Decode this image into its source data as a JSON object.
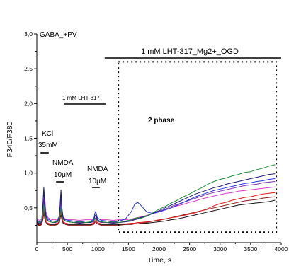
{
  "chart_data": {
    "type": "line",
    "xlabel": "Time, s",
    "ylabel": "F340/F380",
    "xlim": [
      0,
      4000
    ],
    "ylim": [
      0,
      3.0
    ],
    "xticks": [
      0,
      500,
      1000,
      1500,
      2000,
      2500,
      3000,
      3500,
      4000
    ],
    "xtick_labels": [
      "0",
      "500",
      "1000",
      "1500",
      "2000",
      "2500",
      "3000",
      "3500",
      "4000"
    ],
    "yticks": [
      0.5,
      1.0,
      1.5,
      2.0,
      2.5,
      3.0
    ],
    "ytick_labels": [
      "0,5",
      "1,0",
      "1,5",
      "2,0",
      "2,5",
      "3,0"
    ],
    "grid": false,
    "legend": "none",
    "x": [
      0,
      20,
      50,
      80,
      100,
      115,
      130,
      150,
      180,
      220,
      260,
      300,
      340,
      370,
      385,
      395,
      410,
      430,
      470,
      520,
      600,
      700,
      800,
      880,
      930,
      950,
      965,
      990,
      1050,
      1150,
      1250,
      1350,
      1450,
      1550,
      1600,
      1650,
      1700,
      1800,
      1900,
      2000,
      2100,
      2200,
      2300,
      2400,
      2500,
      2600,
      2700,
      2800,
      2900,
      3000,
      3100,
      3200,
      3300,
      3400,
      3500,
      3600,
      3700,
      3800,
      3900
    ],
    "series": [
      {
        "color": "#111111",
        "values": [
          0.28,
          0.26,
          0.25,
          0.27,
          0.33,
          0.42,
          0.35,
          0.29,
          0.27,
          0.26,
          0.26,
          0.26,
          0.26,
          0.29,
          0.36,
          0.4,
          0.33,
          0.28,
          0.27,
          0.26,
          0.26,
          0.26,
          0.26,
          0.26,
          0.27,
          0.29,
          0.3,
          0.27,
          0.26,
          0.26,
          0.26,
          0.26,
          0.26,
          0.27,
          0.27,
          0.27,
          0.28,
          0.28,
          0.29,
          0.3,
          0.31,
          0.33,
          0.34,
          0.36,
          0.38,
          0.4,
          0.42,
          0.44,
          0.46,
          0.48,
          0.5,
          0.52,
          0.54,
          0.55,
          0.56,
          0.57,
          0.58,
          0.59,
          0.61
        ]
      },
      {
        "color": "#8b1c1c",
        "values": [
          0.27,
          0.25,
          0.24,
          0.26,
          0.34,
          0.45,
          0.36,
          0.29,
          0.26,
          0.25,
          0.25,
          0.25,
          0.26,
          0.3,
          0.42,
          0.5,
          0.37,
          0.29,
          0.26,
          0.25,
          0.25,
          0.25,
          0.25,
          0.25,
          0.26,
          0.29,
          0.3,
          0.27,
          0.25,
          0.25,
          0.25,
          0.25,
          0.26,
          0.26,
          0.27,
          0.27,
          0.28,
          0.29,
          0.31,
          0.32,
          0.34,
          0.36,
          0.38,
          0.4,
          0.42,
          0.44,
          0.46,
          0.48,
          0.5,
          0.52,
          0.54,
          0.56,
          0.58,
          0.6,
          0.61,
          0.62,
          0.64,
          0.65,
          0.66
        ]
      },
      {
        "color": "#e31a1a",
        "values": [
          0.29,
          0.27,
          0.26,
          0.28,
          0.38,
          0.5,
          0.4,
          0.32,
          0.28,
          0.27,
          0.27,
          0.27,
          0.28,
          0.31,
          0.4,
          0.45,
          0.36,
          0.3,
          0.28,
          0.27,
          0.27,
          0.27,
          0.27,
          0.27,
          0.28,
          0.31,
          0.32,
          0.29,
          0.27,
          0.27,
          0.27,
          0.27,
          0.27,
          0.28,
          0.28,
          0.29,
          0.29,
          0.3,
          0.31,
          0.33,
          0.34,
          0.36,
          0.37,
          0.39,
          0.41,
          0.43,
          0.46,
          0.49,
          0.53,
          0.56,
          0.58,
          0.61,
          0.63,
          0.65,
          0.66,
          0.68,
          0.7,
          0.71,
          0.72
        ]
      },
      {
        "color": "#d63fc8",
        "values": [
          0.35,
          0.33,
          0.32,
          0.34,
          0.48,
          0.62,
          0.65,
          0.44,
          0.36,
          0.34,
          0.33,
          0.33,
          0.34,
          0.38,
          0.5,
          0.58,
          0.45,
          0.37,
          0.34,
          0.33,
          0.33,
          0.32,
          0.33,
          0.33,
          0.34,
          0.38,
          0.4,
          0.35,
          0.33,
          0.33,
          0.32,
          0.33,
          0.33,
          0.34,
          0.35,
          0.36,
          0.37,
          0.39,
          0.42,
          0.44,
          0.47,
          0.5,
          0.53,
          0.55,
          0.58,
          0.6,
          0.63,
          0.65,
          0.67,
          0.69,
          0.71,
          0.72,
          0.74,
          0.75,
          0.76,
          0.77,
          0.78,
          0.79,
          0.8
        ]
      },
      {
        "color": "#7a2ea6",
        "values": [
          0.31,
          0.29,
          0.28,
          0.3,
          0.45,
          0.6,
          0.45,
          0.35,
          0.31,
          0.3,
          0.29,
          0.29,
          0.3,
          0.35,
          0.52,
          0.62,
          0.44,
          0.34,
          0.31,
          0.3,
          0.29,
          0.29,
          0.29,
          0.29,
          0.3,
          0.34,
          0.36,
          0.31,
          0.29,
          0.29,
          0.29,
          0.29,
          0.3,
          0.32,
          0.34,
          0.35,
          0.36,
          0.39,
          0.42,
          0.45,
          0.48,
          0.52,
          0.55,
          0.58,
          0.61,
          0.64,
          0.67,
          0.7,
          0.72,
          0.74,
          0.76,
          0.78,
          0.8,
          0.82,
          0.83,
          0.84,
          0.86,
          0.87,
          0.88
        ]
      },
      {
        "color": "#2233dd",
        "values": [
          0.33,
          0.31,
          0.3,
          0.32,
          0.55,
          0.8,
          0.55,
          0.4,
          0.34,
          0.32,
          0.31,
          0.31,
          0.32,
          0.38,
          0.58,
          0.72,
          0.48,
          0.36,
          0.33,
          0.32,
          0.31,
          0.3,
          0.31,
          0.31,
          0.33,
          0.42,
          0.45,
          0.36,
          0.32,
          0.31,
          0.3,
          0.31,
          0.34,
          0.45,
          0.55,
          0.58,
          0.54,
          0.44,
          0.42,
          0.44,
          0.47,
          0.5,
          0.54,
          0.58,
          0.62,
          0.66,
          0.69,
          0.72,
          0.75,
          0.77,
          0.79,
          0.81,
          0.83,
          0.85,
          0.86,
          0.88,
          0.89,
          0.91,
          0.92
        ]
      },
      {
        "color": "#1b1b78",
        "values": [
          0.3,
          0.28,
          0.27,
          0.29,
          0.5,
          0.78,
          0.52,
          0.38,
          0.32,
          0.3,
          0.29,
          0.29,
          0.3,
          0.36,
          0.6,
          0.76,
          0.5,
          0.36,
          0.31,
          0.3,
          0.29,
          0.28,
          0.29,
          0.29,
          0.31,
          0.38,
          0.4,
          0.33,
          0.3,
          0.29,
          0.28,
          0.29,
          0.3,
          0.31,
          0.33,
          0.34,
          0.36,
          0.38,
          0.42,
          0.46,
          0.5,
          0.54,
          0.58,
          0.62,
          0.66,
          0.7,
          0.73,
          0.76,
          0.79,
          0.81,
          0.84,
          0.86,
          0.88,
          0.9,
          0.92,
          0.94,
          0.96,
          0.98,
          0.99
        ]
      },
      {
        "color": "#1e8c3c",
        "values": [
          0.32,
          0.3,
          0.29,
          0.31,
          0.42,
          0.55,
          0.4,
          0.34,
          0.31,
          0.3,
          0.29,
          0.3,
          0.3,
          0.34,
          0.45,
          0.5,
          0.38,
          0.33,
          0.31,
          0.3,
          0.29,
          0.3,
          0.29,
          0.3,
          0.31,
          0.35,
          0.33,
          0.31,
          0.3,
          0.29,
          0.3,
          0.29,
          0.31,
          0.33,
          0.35,
          0.36,
          0.35,
          0.38,
          0.43,
          0.48,
          0.52,
          0.57,
          0.61,
          0.66,
          0.7,
          0.75,
          0.79,
          0.84,
          0.88,
          0.91,
          0.93,
          0.96,
          0.98,
          1.01,
          1.02,
          1.05,
          1.07,
          1.1,
          1.12
        ]
      }
    ],
    "annotations": {
      "condition": "GABA_+PV",
      "ogd": {
        "label": "1 mM LHT-317_Mg2+_OGD",
        "t": [
          1110,
          4000
        ]
      },
      "lht": {
        "label": "1 mM LHT-317",
        "t": [
          450,
          1135
        ]
      },
      "kcl": {
        "label": "KCl",
        "dose": "35mM",
        "t": [
          60,
          195
        ]
      },
      "nmda1": {
        "label": "NMDA",
        "dose": "10μM",
        "t": [
          315,
          440
        ]
      },
      "nmda2": {
        "label": "NMDA",
        "dose": "10μM",
        "t": [
          905,
          1030
        ]
      },
      "phase2": {
        "label": "2 phase",
        "t": [
          1335,
          3920
        ],
        "y": [
          0.15,
          2.6
        ]
      }
    }
  }
}
